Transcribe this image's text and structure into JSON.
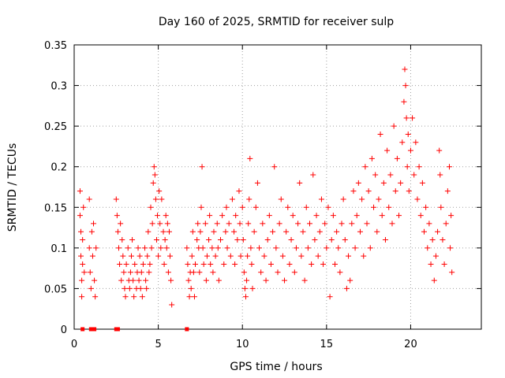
{
  "chart_data": {
    "type": "scatter",
    "title": "Day 160 of 2025, SRMTID for receiver sulp",
    "xlabel": "GPS time / hours",
    "ylabel": "SRMTID / TECUs",
    "xlim": [
      0,
      24.2
    ],
    "ylim": [
      0,
      0.35
    ],
    "xticks": [
      0,
      5,
      10,
      15,
      20
    ],
    "xtick_labels": [
      "0",
      "5",
      "10",
      "15",
      "20"
    ],
    "yticks": [
      0,
      0.05,
      0.1,
      0.15,
      0.2,
      0.25,
      0.3,
      0.35
    ],
    "ytick_labels": [
      "0",
      "0.05",
      "0.1",
      "0.15",
      "0.2",
      "0.25",
      "0.3",
      "0.35"
    ],
    "grid": true,
    "marker": "+",
    "color": "#ff0000",
    "series": [
      {
        "name": "SRMTID",
        "points": [
          [
            0.35,
            0.17
          ],
          [
            0.35,
            0.14
          ],
          [
            0.4,
            0.12
          ],
          [
            0.4,
            0.09
          ],
          [
            0.45,
            0.06
          ],
          [
            0.45,
            0.04
          ],
          [
            0.5,
            0.11
          ],
          [
            0.5,
            0.08
          ],
          [
            0.55,
            0.15
          ],
          [
            0.6,
            0.07
          ],
          [
            0.9,
            0.16
          ],
          [
            0.9,
            0.1
          ],
          [
            0.95,
            0.07
          ],
          [
            1.0,
            0.05
          ],
          [
            1.05,
            0.12
          ],
          [
            1.1,
            0.09
          ],
          [
            1.15,
            0.13
          ],
          [
            1.2,
            0.06
          ],
          [
            1.25,
            0.04
          ],
          [
            1.3,
            0.1
          ],
          [
            2.5,
            0.16
          ],
          [
            2.55,
            0.14
          ],
          [
            2.6,
            0.12
          ],
          [
            2.65,
            0.1
          ],
          [
            2.7,
            0.08
          ],
          [
            2.75,
            0.13
          ],
          [
            2.8,
            0.06
          ],
          [
            2.85,
            0.11
          ],
          [
            2.9,
            0.09
          ],
          [
            2.95,
            0.07
          ],
          [
            3.0,
            0.05
          ],
          [
            3.05,
            0.04
          ],
          [
            3.1,
            0.08
          ],
          [
            3.2,
            0.1
          ],
          [
            3.25,
            0.06
          ],
          [
            3.3,
            0.05
          ],
          [
            3.35,
            0.07
          ],
          [
            3.4,
            0.09
          ],
          [
            3.45,
            0.11
          ],
          [
            3.5,
            0.06
          ],
          [
            3.55,
            0.04
          ],
          [
            3.6,
            0.08
          ],
          [
            3.7,
            0.05
          ],
          [
            3.75,
            0.07
          ],
          [
            3.8,
            0.1
          ],
          [
            3.85,
            0.06
          ],
          [
            3.9,
            0.09
          ],
          [
            3.95,
            0.05
          ],
          [
            4.0,
            0.07
          ],
          [
            4.05,
            0.04
          ],
          [
            4.1,
            0.08
          ],
          [
            4.2,
            0.1
          ],
          [
            4.25,
            0.06
          ],
          [
            4.3,
            0.05
          ],
          [
            4.35,
            0.09
          ],
          [
            4.4,
            0.12
          ],
          [
            4.45,
            0.07
          ],
          [
            4.5,
            0.08
          ],
          [
            4.55,
            0.15
          ],
          [
            4.6,
            0.1
          ],
          [
            4.65,
            0.13
          ],
          [
            4.7,
            0.18
          ],
          [
            4.75,
            0.2
          ],
          [
            4.8,
            0.19
          ],
          [
            4.85,
            0.16
          ],
          [
            4.9,
            0.11
          ],
          [
            4.95,
            0.14
          ],
          [
            5.0,
            0.09
          ],
          [
            5.05,
            0.17
          ],
          [
            5.1,
            0.13
          ],
          [
            5.15,
            0.1
          ],
          [
            5.2,
            0.16
          ],
          [
            5.3,
            0.12
          ],
          [
            5.35,
            0.08
          ],
          [
            5.4,
            0.11
          ],
          [
            5.45,
            0.14
          ],
          [
            5.5,
            0.1
          ],
          [
            5.55,
            0.13
          ],
          [
            5.6,
            0.07
          ],
          [
            5.65,
            0.12
          ],
          [
            5.7,
            0.09
          ],
          [
            5.75,
            0.06
          ],
          [
            5.8,
            0.03
          ],
          [
            6.7,
            0.1
          ],
          [
            6.75,
            0.08
          ],
          [
            6.8,
            0.06
          ],
          [
            6.85,
            0.04
          ],
          [
            6.9,
            0.07
          ],
          [
            6.95,
            0.05
          ],
          [
            7.0,
            0.09
          ],
          [
            7.05,
            0.12
          ],
          [
            7.1,
            0.07
          ],
          [
            7.15,
            0.04
          ],
          [
            7.2,
            0.08
          ],
          [
            7.3,
            0.11
          ],
          [
            7.35,
            0.13
          ],
          [
            7.4,
            0.1
          ],
          [
            7.45,
            0.07
          ],
          [
            7.5,
            0.12
          ],
          [
            7.55,
            0.15
          ],
          [
            7.6,
            0.2
          ],
          [
            7.65,
            0.1
          ],
          [
            7.7,
            0.08
          ],
          [
            7.8,
            0.13
          ],
          [
            7.85,
            0.06
          ],
          [
            7.9,
            0.09
          ],
          [
            8.0,
            0.11
          ],
          [
            8.05,
            0.14
          ],
          [
            8.1,
            0.08
          ],
          [
            8.2,
            0.1
          ],
          [
            8.25,
            0.07
          ],
          [
            8.3,
            0.12
          ],
          [
            8.4,
            0.09
          ],
          [
            8.5,
            0.13
          ],
          [
            8.55,
            0.1
          ],
          [
            8.6,
            0.06
          ],
          [
            8.7,
            0.11
          ],
          [
            8.8,
            0.14
          ],
          [
            8.9,
            0.08
          ],
          [
            9.0,
            0.12
          ],
          [
            9.05,
            0.15
          ],
          [
            9.1,
            0.1
          ],
          [
            9.2,
            0.13
          ],
          [
            9.3,
            0.09
          ],
          [
            9.4,
            0.16
          ],
          [
            9.5,
            0.12
          ],
          [
            9.55,
            0.08
          ],
          [
            9.6,
            0.14
          ],
          [
            9.7,
            0.11
          ],
          [
            9.8,
            0.17
          ],
          [
            9.85,
            0.13
          ],
          [
            9.9,
            0.09
          ],
          [
            10.0,
            0.15
          ],
          [
            10.05,
            0.11
          ],
          [
            10.1,
            0.07
          ],
          [
            10.15,
            0.05
          ],
          [
            10.2,
            0.04
          ],
          [
            10.25,
            0.06
          ],
          [
            10.3,
            0.09
          ],
          [
            10.35,
            0.13
          ],
          [
            10.4,
            0.16
          ],
          [
            10.45,
            0.21
          ],
          [
            10.5,
            0.1
          ],
          [
            10.55,
            0.08
          ],
          [
            10.6,
            0.05
          ],
          [
            10.7,
            0.12
          ],
          [
            10.8,
            0.15
          ],
          [
            10.9,
            0.18
          ],
          [
            11.0,
            0.1
          ],
          [
            11.1,
            0.07
          ],
          [
            11.2,
            0.13
          ],
          [
            11.3,
            0.09
          ],
          [
            11.4,
            0.06
          ],
          [
            11.5,
            0.11
          ],
          [
            11.6,
            0.14
          ],
          [
            11.7,
            0.08
          ],
          [
            11.8,
            0.12
          ],
          [
            11.9,
            0.2
          ],
          [
            12.0,
            0.1
          ],
          [
            12.1,
            0.07
          ],
          [
            12.2,
            0.13
          ],
          [
            12.3,
            0.16
          ],
          [
            12.4,
            0.09
          ],
          [
            12.5,
            0.06
          ],
          [
            12.6,
            0.12
          ],
          [
            12.7,
            0.15
          ],
          [
            12.8,
            0.08
          ],
          [
            12.9,
            0.11
          ],
          [
            13.0,
            0.14
          ],
          [
            13.1,
            0.07
          ],
          [
            13.2,
            0.1
          ],
          [
            13.3,
            0.13
          ],
          [
            13.4,
            0.18
          ],
          [
            13.5,
            0.09
          ],
          [
            13.6,
            0.12
          ],
          [
            13.7,
            0.06
          ],
          [
            13.8,
            0.15
          ],
          [
            13.9,
            0.1
          ],
          [
            14.0,
            0.13
          ],
          [
            14.1,
            0.08
          ],
          [
            14.2,
            0.19
          ],
          [
            14.3,
            0.11
          ],
          [
            14.4,
            0.14
          ],
          [
            14.5,
            0.09
          ],
          [
            14.6,
            0.12
          ],
          [
            14.7,
            0.16
          ],
          [
            14.8,
            0.08
          ],
          [
            14.9,
            0.13
          ],
          [
            15.0,
            0.1
          ],
          [
            15.1,
            0.15
          ],
          [
            15.2,
            0.04
          ],
          [
            15.3,
            0.11
          ],
          [
            15.4,
            0.14
          ],
          [
            15.5,
            0.08
          ],
          [
            15.6,
            0.12
          ],
          [
            15.7,
            0.1
          ],
          [
            15.8,
            0.07
          ],
          [
            15.9,
            0.13
          ],
          [
            16.0,
            0.16
          ],
          [
            16.1,
            0.11
          ],
          [
            16.2,
            0.05
          ],
          [
            16.3,
            0.09
          ],
          [
            16.4,
            0.06
          ],
          [
            16.5,
            0.13
          ],
          [
            16.6,
            0.17
          ],
          [
            16.7,
            0.1
          ],
          [
            16.8,
            0.14
          ],
          [
            16.9,
            0.18
          ],
          [
            17.0,
            0.12
          ],
          [
            17.1,
            0.16
          ],
          [
            17.2,
            0.09
          ],
          [
            17.3,
            0.2
          ],
          [
            17.4,
            0.13
          ],
          [
            17.5,
            0.17
          ],
          [
            17.6,
            0.1
          ],
          [
            17.7,
            0.21
          ],
          [
            17.8,
            0.15
          ],
          [
            17.9,
            0.19
          ],
          [
            18.0,
            0.12
          ],
          [
            18.1,
            0.16
          ],
          [
            18.2,
            0.24
          ],
          [
            18.3,
            0.14
          ],
          [
            18.4,
            0.18
          ],
          [
            18.5,
            0.11
          ],
          [
            18.6,
            0.22
          ],
          [
            18.7,
            0.15
          ],
          [
            18.8,
            0.19
          ],
          [
            18.9,
            0.13
          ],
          [
            19.0,
            0.25
          ],
          [
            19.1,
            0.17
          ],
          [
            19.2,
            0.21
          ],
          [
            19.3,
            0.14
          ],
          [
            19.4,
            0.18
          ],
          [
            19.5,
            0.23
          ],
          [
            19.6,
            0.28
          ],
          [
            19.65,
            0.32
          ],
          [
            19.7,
            0.3
          ],
          [
            19.75,
            0.26
          ],
          [
            19.8,
            0.2
          ],
          [
            19.85,
            0.24
          ],
          [
            19.9,
            0.17
          ],
          [
            20.0,
            0.22
          ],
          [
            20.1,
            0.26
          ],
          [
            20.2,
            0.19
          ],
          [
            20.3,
            0.23
          ],
          [
            20.4,
            0.16
          ],
          [
            20.5,
            0.2
          ],
          [
            20.6,
            0.14
          ],
          [
            20.7,
            0.18
          ],
          [
            20.8,
            0.12
          ],
          [
            20.9,
            0.15
          ],
          [
            21.0,
            0.1
          ],
          [
            21.1,
            0.13
          ],
          [
            21.2,
            0.08
          ],
          [
            21.3,
            0.11
          ],
          [
            21.4,
            0.06
          ],
          [
            21.5,
            0.09
          ],
          [
            21.6,
            0.12
          ],
          [
            21.7,
            0.22
          ],
          [
            21.75,
            0.19
          ],
          [
            21.8,
            0.15
          ],
          [
            21.9,
            0.11
          ],
          [
            22.0,
            0.08
          ],
          [
            22.1,
            0.13
          ],
          [
            22.2,
            0.17
          ],
          [
            22.3,
            0.2
          ],
          [
            22.35,
            0.1
          ],
          [
            22.4,
            0.14
          ],
          [
            22.45,
            0.07
          ]
        ]
      },
      {
        "name": "zero-markers",
        "marker": "square",
        "points": [
          [
            0.5,
            0
          ],
          [
            1.0,
            0
          ],
          [
            1.2,
            0
          ],
          [
            2.5,
            0
          ],
          [
            2.6,
            0
          ],
          [
            6.7,
            0
          ]
        ]
      }
    ]
  }
}
